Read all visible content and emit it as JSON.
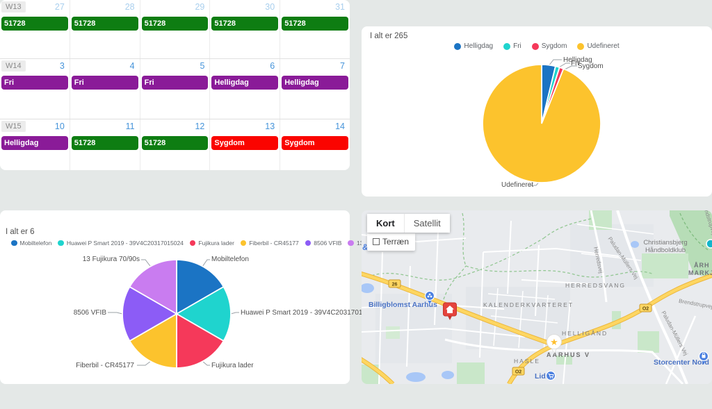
{
  "colors": {
    "page_bg": "#e4e8e7",
    "event_work": "#0e7d12",
    "event_holiday": "#8a1b98",
    "event_sick": "#fa0400",
    "day_number": "#4694da",
    "day_number_adjacent_month": "#a9cfee",
    "map_road_yellow": "#fdd662",
    "map_poi_blue": "#4a7fe0",
    "map_marker_red": "#e5443d"
  },
  "calendar": {
    "weeks": [
      {
        "label": "W13",
        "days": [
          {
            "num": "27",
            "event": {
              "text": "51728",
              "type": "work"
            }
          },
          {
            "num": "28",
            "event": {
              "text": "51728",
              "type": "work"
            }
          },
          {
            "num": "29",
            "event": {
              "text": "51728",
              "type": "work"
            }
          },
          {
            "num": "30",
            "event": {
              "text": "51728",
              "type": "work"
            }
          },
          {
            "num": "31",
            "event": {
              "text": "51728",
              "type": "work"
            }
          }
        ]
      },
      {
        "label": "W14",
        "days": [
          {
            "num": "3",
            "event": {
              "text": "Fri",
              "type": "holiday"
            }
          },
          {
            "num": "4",
            "event": {
              "text": "Fri",
              "type": "holiday"
            }
          },
          {
            "num": "5",
            "event": {
              "text": "Fri",
              "type": "holiday"
            }
          },
          {
            "num": "6",
            "event": {
              "text": "Helligdag",
              "type": "holiday"
            }
          },
          {
            "num": "7",
            "event": {
              "text": "Helligdag",
              "type": "holiday"
            }
          }
        ]
      },
      {
        "label": "W15",
        "days": [
          {
            "num": "10",
            "event": {
              "text": "Helligdag",
              "type": "holiday"
            }
          },
          {
            "num": "11",
            "event": {
              "text": "51728",
              "type": "work"
            }
          },
          {
            "num": "12",
            "event": {
              "text": "51728",
              "type": "work"
            }
          },
          {
            "num": "13",
            "event": {
              "text": "Sygdom",
              "type": "sick"
            }
          },
          {
            "num": "14",
            "event": {
              "text": "Sygdom",
              "type": "sick"
            }
          }
        ]
      }
    ]
  },
  "chart_data": [
    {
      "type": "pie",
      "title": "I alt er 265",
      "total": 265,
      "labels": [
        "Helligdag",
        "Fri",
        "Sygdom",
        "Udefineret"
      ],
      "values": [
        10,
        3,
        3,
        249
      ],
      "colors": [
        "#1b74c4",
        "#1fd4ce",
        "#f5395a",
        "#fcc32d"
      ],
      "legend_position": "top-center",
      "start_angle_deg": 0
    },
    {
      "type": "pie",
      "title": "I alt er 6",
      "total": 6,
      "labels": [
        "Mobiltelefon",
        "Huawei P Smart 2019 - 39V4C20317015024",
        "Fujikura lader",
        "Fiberbil - CR45177",
        "8506 VFIB",
        "13 Fujikura 70/90s"
      ],
      "values": [
        1,
        1,
        1,
        1,
        1,
        1
      ],
      "colors": [
        "#1b74c4",
        "#1fd4ce",
        "#f5395a",
        "#fcc32d",
        "#8c5cf6",
        "#c97cf0"
      ],
      "legend_position": "top-left",
      "start_angle_deg": 0
    }
  ],
  "map": {
    "controls": {
      "kort": "Kort",
      "satellit": "Satellit",
      "terraen": "Terræn"
    },
    "partial_label": "&",
    "road_badges": {
      "b26": "26",
      "o2": "O2"
    },
    "labels": {
      "billigblomst": "Billigblomst Aarhus",
      "kalenderkvarteret": "KALENDERKVARTERET",
      "herredsvang": "HERREDSVANG",
      "helligaand": "HELLIGÅND",
      "aarhus_v": "AARHUS V",
      "hasle": "HASLE",
      "storcenter": "Storcenter Nord",
      "christiansbjerg_line1": "Christiansbjerg",
      "christiansbjerg_line2": "Håndboldklub",
      "markjorder_line1": "ÅRH",
      "markjorder_line2": "MARKJ",
      "herredsvej": "Herredsvej",
      "paludan": "Paludan-Müllers Vej",
      "brendstrupvej": "Brendstrupvej",
      "lidl": "Lidl",
      "star": "★"
    }
  }
}
